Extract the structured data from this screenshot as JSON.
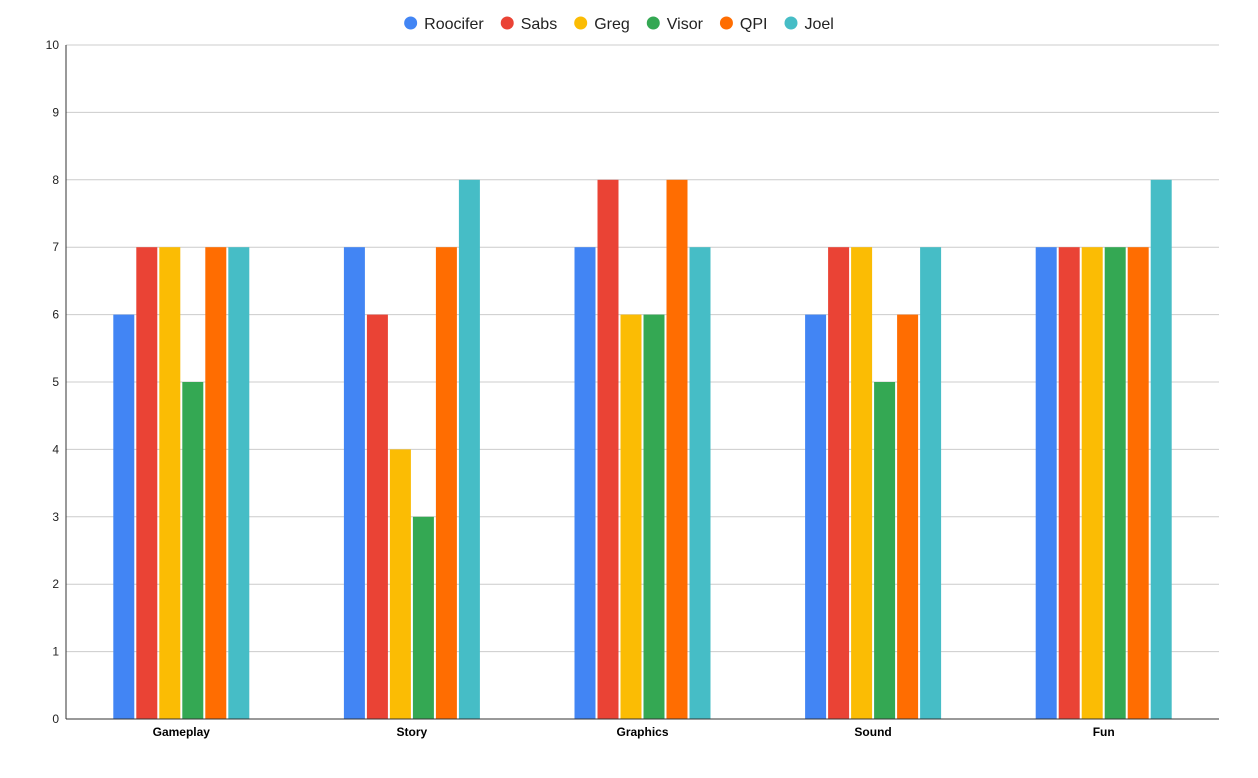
{
  "chart_data": {
    "type": "bar",
    "categories": [
      "Gameplay",
      "Story",
      "Graphics",
      "Sound",
      "Fun"
    ],
    "series": [
      {
        "name": "Roocifer",
        "color": "#4285f4",
        "values": [
          6,
          7,
          7,
          6,
          7
        ]
      },
      {
        "name": "Sabs",
        "color": "#ea4335",
        "values": [
          7,
          6,
          8,
          7,
          7
        ]
      },
      {
        "name": "Greg",
        "color": "#fbbc04",
        "values": [
          7,
          4,
          6,
          7,
          7
        ]
      },
      {
        "name": "Visor",
        "color": "#34a853",
        "values": [
          5,
          3,
          6,
          5,
          7
        ]
      },
      {
        "name": "QPI",
        "color": "#ff6d01",
        "values": [
          7,
          7,
          8,
          6,
          7
        ]
      },
      {
        "name": "Joel",
        "color": "#46bdc6",
        "values": [
          7,
          8,
          7,
          7,
          8
        ]
      }
    ],
    "ylim": [
      0,
      10
    ],
    "yticks": [
      "0",
      "1",
      "2",
      "3",
      "4",
      "5",
      "6",
      "7",
      "8",
      "9",
      "10"
    ],
    "grid": true,
    "legend_position": "top"
  }
}
